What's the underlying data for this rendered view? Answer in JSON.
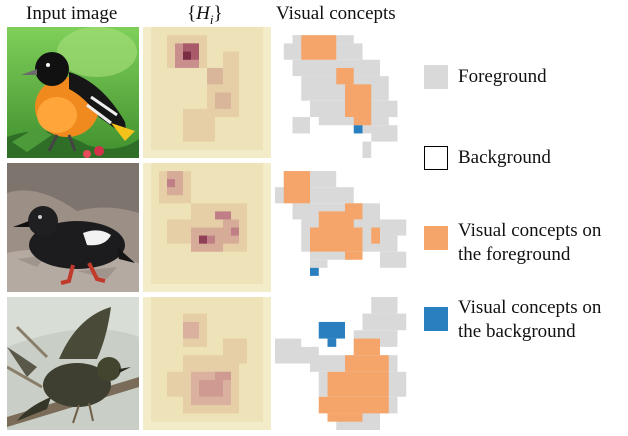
{
  "headers": {
    "input": "Input image",
    "heat_open": "{",
    "heat_var": "H",
    "heat_sub": "i",
    "heat_close": "}",
    "concepts": "Visual concepts"
  },
  "legend": [
    {
      "color": "#d9d9d9",
      "border": "none",
      "line1": "Foreground",
      "line2": ""
    },
    {
      "color": "#ffffff",
      "border": "#000000",
      "line1": "Background",
      "line2": ""
    },
    {
      "color": "#f5a56a",
      "border": "none",
      "line1": "Visual concepts on",
      "line2": "the foreground"
    },
    {
      "color": "#2a7fbf",
      "border": "none",
      "line1": "Visual concepts on",
      "line2": "the background"
    }
  ],
  "colors": {
    "heat_background": "#f2ecc8",
    "foreground": "#d9d9d9",
    "concept_fg": "#f5a56a",
    "concept_bg": "#2a7fbf"
  },
  "rows": [
    {
      "subject": "oriole bird photo"
    },
    {
      "subject": "black guillemot photo"
    },
    {
      "subject": "flying songbird photo"
    }
  ]
}
